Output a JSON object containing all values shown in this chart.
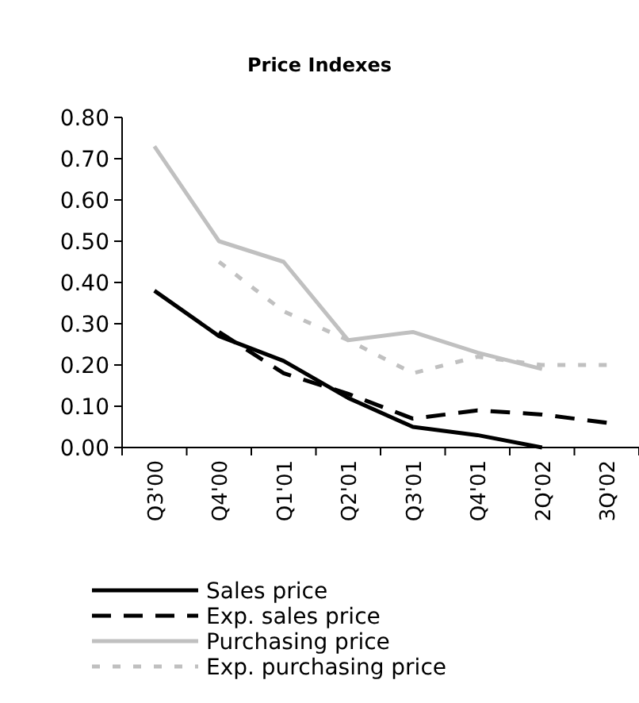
{
  "chart_data": {
    "type": "line",
    "title": "Price Indexes",
    "categories": [
      "Q3'00",
      "Q4'00",
      "Q1'01",
      "Q2'01",
      "Q3'01",
      "Q4'01",
      "2Q'02",
      "3Q'02"
    ],
    "ylim": [
      0,
      0.8
    ],
    "yticks": [
      {
        "value": 0,
        "label": "0.00"
      },
      {
        "value": 0.1,
        "label": "0.10"
      },
      {
        "value": 0.2,
        "label": "0.20"
      },
      {
        "value": 0.3,
        "label": "0.30"
      },
      {
        "value": 0.4,
        "label": "0.40"
      },
      {
        "value": 0.5,
        "label": "0.50"
      },
      {
        "value": 0.6,
        "label": "0.60"
      },
      {
        "value": 0.7,
        "label": "0.70"
      },
      {
        "value": 0.8,
        "label": "0.80"
      }
    ],
    "grid": false,
    "legend": "bottom",
    "marker": "none",
    "series": [
      {
        "name": "Sales price",
        "color": "#000000",
        "line_style": "solid",
        "values": [
          0.38,
          0.27,
          0.21,
          0.12,
          0.05,
          0.03,
          0.0,
          null
        ]
      },
      {
        "name": "Exp. sales price",
        "color": "#000000",
        "line_style": "dashed",
        "values": [
          null,
          0.28,
          0.18,
          0.13,
          0.07,
          0.09,
          0.08,
          0.06
        ]
      },
      {
        "name": "Purchasing price",
        "color": "#c0c0c0",
        "line_style": "solid",
        "values": [
          0.73,
          0.5,
          0.45,
          0.26,
          0.28,
          0.23,
          0.19,
          null
        ]
      },
      {
        "name": "Exp. purchasing price",
        "color": "#c0c0c0",
        "line_style": "dashed",
        "values": [
          null,
          0.45,
          0.33,
          0.26,
          0.18,
          0.22,
          0.2,
          0.2
        ]
      }
    ]
  }
}
